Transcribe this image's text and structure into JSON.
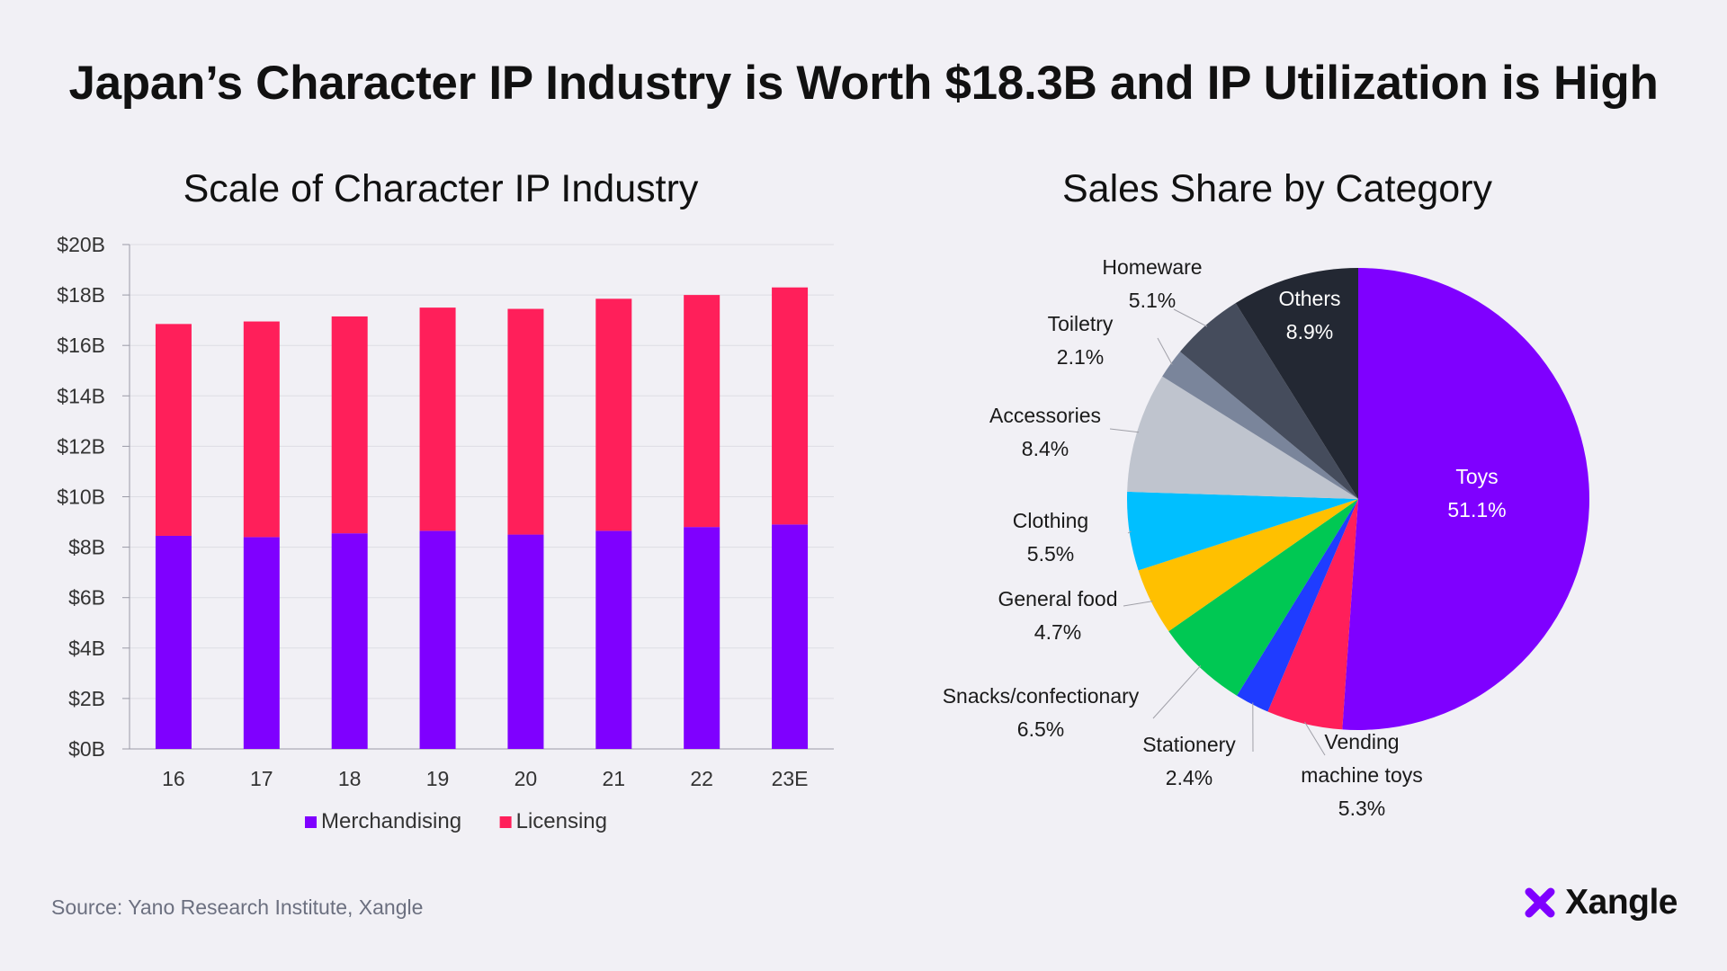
{
  "title": "Japan’s Character IP Industry is Worth $18.3B and IP Utilization is High",
  "chart_data": [
    {
      "type": "bar",
      "stacked": true,
      "title": "Scale of Character IP Industry",
      "categories": [
        "16",
        "17",
        "18",
        "19",
        "20",
        "21",
        "22",
        "23E"
      ],
      "series": [
        {
          "name": "Merchandising",
          "color": "#7f00ff",
          "values": [
            8.45,
            8.4,
            8.55,
            8.65,
            8.5,
            8.65,
            8.8,
            8.9
          ]
        },
        {
          "name": "Licensing",
          "color": "#ff1f5a",
          "values": [
            8.4,
            8.55,
            8.6,
            8.85,
            8.95,
            9.2,
            9.2,
            9.4
          ]
        }
      ],
      "ylim": [
        0,
        20
      ],
      "yticks": [
        "$0B",
        "$2B",
        "$4B",
        "$6B",
        "$8B",
        "$10B",
        "$12B",
        "$14B",
        "$16B",
        "$18B",
        "$20B"
      ],
      "legend": "bottom",
      "xlabel": "",
      "ylabel": ""
    },
    {
      "type": "pie",
      "title": "Sales Share by Category",
      "slices": [
        {
          "name": "Toys",
          "value": 51.1,
          "label": "51.1%",
          "color": "#7f00ff"
        },
        {
          "name": "Vending machine toys",
          "value": 5.3,
          "label": "5.3%",
          "color": "#ff1f5a"
        },
        {
          "name": "Stationery",
          "value": 2.4,
          "label": "2.4%",
          "color": "#1f3cff"
        },
        {
          "name": "Snacks/confectionary",
          "value": 6.5,
          "label": "6.5%",
          "color": "#00c853"
        },
        {
          "name": "General food",
          "value": 4.7,
          "label": "4.7%",
          "color": "#ffc000"
        },
        {
          "name": "Clothing",
          "value": 5.5,
          "label": "5.5%",
          "color": "#00bfff"
        },
        {
          "name": "Accessories",
          "value": 8.4,
          "label": "8.4%",
          "color": "#bfc4ce"
        },
        {
          "name": "Toiletry",
          "value": 2.1,
          "label": "2.1%",
          "color": "#7a859b"
        },
        {
          "name": "Homeware",
          "value": 5.1,
          "label": "5.1%",
          "color": "#454c5c"
        },
        {
          "name": "Others",
          "value": 8.9,
          "label": "8.9%",
          "color": "#232833"
        }
      ]
    }
  ],
  "source": "Source: Yano Research Institute, Xangle",
  "brand": {
    "name": "Xangle",
    "icon": "xangle-logo-icon",
    "icon_color": "#7f00ff"
  }
}
